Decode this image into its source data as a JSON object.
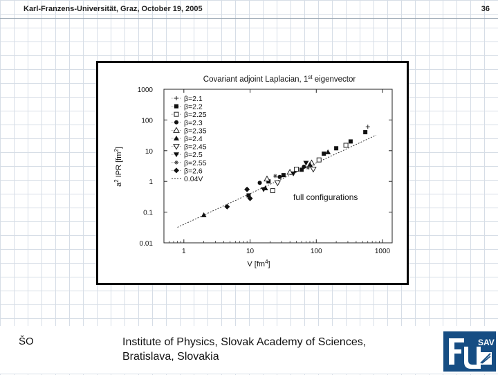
{
  "header": {
    "conference": "Karl-Franzens-Universität, Graz, October 19, 2005",
    "slide_number": "36"
  },
  "chart_data": {
    "type": "scatter",
    "title_prefix": "Covariant adjoint Laplacian, 1",
    "title_sup": "st",
    "title_suffix": " eigenvector",
    "xlabel": "V [fm",
    "xlabel_sup": "4",
    "xlabel_end": "]",
    "ylabel": "a",
    "ylabel_sup": "2",
    "ylabel_mid": " IPR [fm",
    "ylabel_sup2": "2",
    "ylabel_end": "]",
    "x_scale": "log",
    "y_scale": "log",
    "xlim": [
      0.5,
      1400
    ],
    "ylim": [
      0.01,
      1000
    ],
    "x_ticks": [
      1,
      10,
      100,
      1000
    ],
    "x_tick_labels": [
      "1",
      "10",
      "100",
      "1000"
    ],
    "y_ticks": [
      0.01,
      0.1,
      1,
      10,
      100,
      1000
    ],
    "y_tick_labels": [
      "0.01",
      "0.1",
      "1",
      "10",
      "100",
      "1000"
    ],
    "annotation": "full configurations",
    "legend_position": "top-left",
    "series": [
      {
        "name": "β=2.1",
        "marker": "plus",
        "points": [
          [
            600,
            60
          ]
        ]
      },
      {
        "name": "β=2.2",
        "marker": "square-filled",
        "points": [
          [
            9.5,
            0.35
          ],
          [
            19,
            1
          ],
          [
            32,
            1.6
          ],
          [
            60,
            2.4
          ],
          [
            130,
            8
          ],
          [
            200,
            12
          ],
          [
            330,
            20
          ],
          [
            550,
            40
          ]
        ]
      },
      {
        "name": "β=2.25",
        "marker": "square-open",
        "points": [
          [
            22,
            0.5
          ],
          [
            50,
            2.5
          ],
          [
            110,
            5
          ],
          [
            280,
            15
          ]
        ]
      },
      {
        "name": "β=2.3",
        "marker": "circle-filled",
        "points": [
          [
            14,
            0.9
          ],
          [
            28,
            1.4
          ],
          [
            65,
            3
          ]
        ]
      },
      {
        "name": "β=2.35",
        "marker": "triangle-open",
        "points": [
          [
            18,
            1.2
          ],
          [
            40,
            2
          ],
          [
            85,
            4
          ]
        ]
      },
      {
        "name": "β=2.4",
        "marker": "triangle-filled",
        "points": [
          [
            2,
            0.08
          ],
          [
            17,
            0.6
          ],
          [
            80,
            3.5
          ],
          [
            150,
            9
          ]
        ]
      },
      {
        "name": "β=2.45",
        "marker": "triangle-down-open",
        "points": [
          [
            26,
            0.9
          ],
          [
            90,
            2.5
          ]
        ]
      },
      {
        "name": "β=2.5",
        "marker": "triangle-down-filled",
        "points": [
          [
            16,
            0.55
          ],
          [
            45,
            1.8
          ],
          [
            70,
            4
          ]
        ]
      },
      {
        "name": "β=2.55",
        "marker": "star",
        "points": [
          [
            24,
            1.5
          ],
          [
            75,
            2.8
          ]
        ]
      },
      {
        "name": "β=2.6",
        "marker": "diamond-filled",
        "points": [
          [
            4.5,
            0.15
          ],
          [
            9,
            0.55
          ],
          [
            10,
            0.28
          ]
        ]
      }
    ],
    "fit_line": {
      "name": "0.04V",
      "coefficient": 0.04,
      "x_range": [
        0.8,
        800
      ]
    }
  },
  "footer": {
    "initials": "ŠO",
    "institute_line1": "Institute of Physics, Slovak Academy of Sciences,",
    "institute_line2": "Bratislava, Slovakia",
    "logo_text": "SAV"
  },
  "colors": {
    "logo_blue": "#164d83",
    "grid": "#d6dde6"
  }
}
